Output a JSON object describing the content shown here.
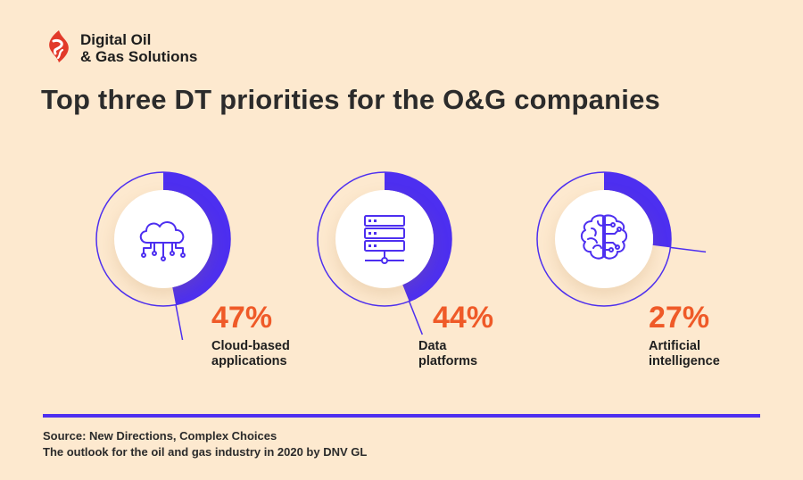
{
  "brand": {
    "line1": "Digital Oil",
    "line2": "& Gas Solutions"
  },
  "title": "Top three DT priorities for the O&G companies",
  "chart_data": {
    "type": "pie",
    "title": "Top three DT priorities for the O&G companies",
    "items": [
      {
        "label_line1": "Cloud-based",
        "label_line2": "applications",
        "value": 47,
        "value_label": "47%",
        "icon": "cloud-network-icon"
      },
      {
        "label_line1": "Data",
        "label_line2": "platforms",
        "value": 44,
        "value_label": "44%",
        "icon": "server-database-icon"
      },
      {
        "label_line1": "Artificial",
        "label_line2": "intelligence",
        "value": 27,
        "value_label": "27%",
        "icon": "brain-circuit-icon"
      }
    ]
  },
  "source": {
    "line1": "Source: New Directions, Complex Choices",
    "line2": "The outlook for the oil and gas industry in 2020 by DNV GL"
  },
  "colors": {
    "background": "#fde9cf",
    "accent": "#4d2ff0",
    "percent": "#ef5a28",
    "text": "#2b2b2b"
  }
}
